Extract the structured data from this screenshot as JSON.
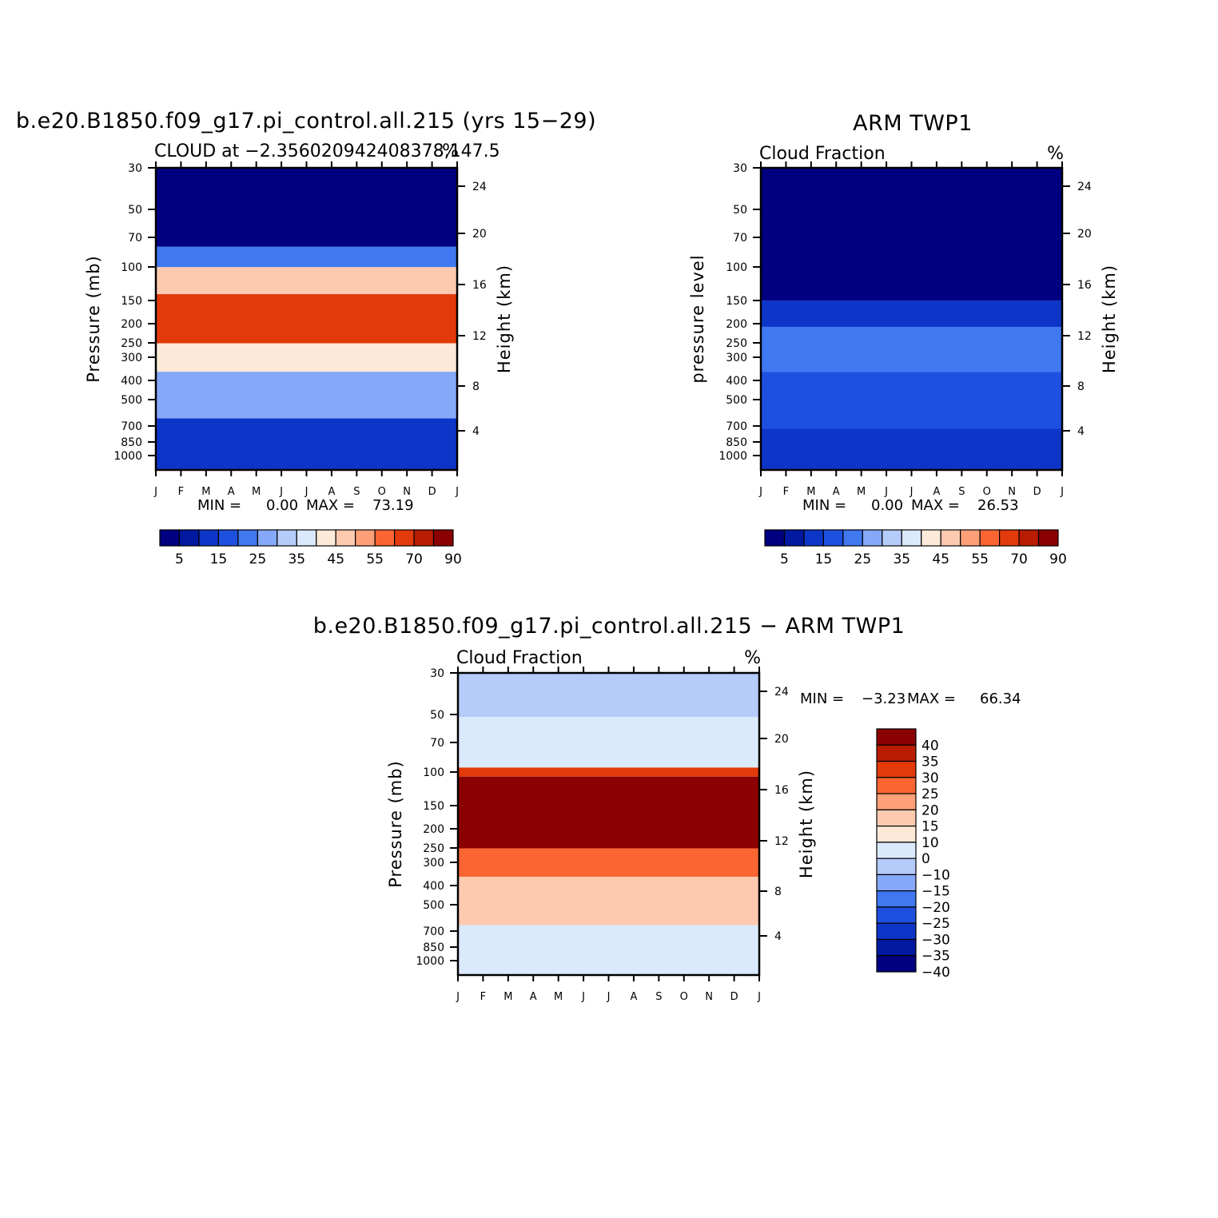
{
  "chart_data": [
    {
      "type": "heatmap",
      "title": "b.e20.B1850.f09_g17.pi_control.all.215 (yrs 15−29)",
      "subtitle_left": "CLOUD at −2.356020942408378,147.5",
      "subtitle_right": "%",
      "ylabel": "Pressure (mb)",
      "ylabel_right": "Height (km)",
      "x_ticks": [
        "J",
        "F",
        "M",
        "A",
        "M",
        "J",
        "J",
        "A",
        "S",
        "O",
        "N",
        "D",
        "J"
      ],
      "y_ticks": [
        "30",
        "50",
        "70",
        "100",
        "150",
        "200",
        "250",
        "300",
        "400",
        "500",
        "700",
        "850",
        "1000"
      ],
      "y_ticks_right": [
        "24",
        "20",
        "16",
        "12",
        "8",
        "4"
      ],
      "stats": {
        "min_label": "MIN =",
        "min": "0.00",
        "max_label": "MAX =",
        "max": "73.19"
      },
      "colorbar_labels": [
        "5",
        "15",
        "25",
        "35",
        "45",
        "55",
        "70",
        "90"
      ],
      "bands": [
        {
          "from_hpa": 30,
          "to_hpa": 75,
          "value": 2
        },
        {
          "from_hpa": 75,
          "to_hpa": 95,
          "value": 20
        },
        {
          "from_hpa": 95,
          "to_hpa": 130,
          "value": 45
        },
        {
          "from_hpa": 130,
          "to_hpa": 230,
          "value": 65
        },
        {
          "from_hpa": 230,
          "to_hpa": 320,
          "value": 40
        },
        {
          "from_hpa": 320,
          "to_hpa": 550,
          "value": 25
        },
        {
          "from_hpa": 550,
          "to_hpa": 1000,
          "value": 10
        }
      ]
    },
    {
      "type": "heatmap",
      "title": "ARM TWP1",
      "subtitle_left": "Cloud Fraction",
      "subtitle_right": "%",
      "ylabel": "pressure level",
      "ylabel_right": "Height (km)",
      "x_ticks": [
        "J",
        "F",
        "M",
        "A",
        "M",
        "J",
        "J",
        "A",
        "S",
        "O",
        "N",
        "D",
        "J"
      ],
      "y_ticks": [
        "30",
        "50",
        "70",
        "100",
        "150",
        "200",
        "250",
        "300",
        "400",
        "500",
        "700",
        "850",
        "1000"
      ],
      "y_ticks_right": [
        "24",
        "20",
        "16",
        "12",
        "8",
        "4"
      ],
      "stats": {
        "min_label": "MIN =",
        "min": "0.00",
        "max_label": "MAX =",
        "max": "26.53"
      },
      "colorbar_labels": [
        "5",
        "15",
        "25",
        "35",
        "45",
        "55",
        "70",
        "90"
      ],
      "bands": [
        {
          "from_hpa": 30,
          "to_hpa": 140,
          "value": 2
        },
        {
          "from_hpa": 140,
          "to_hpa": 190,
          "value": 10
        },
        {
          "from_hpa": 190,
          "to_hpa": 320,
          "value": 22
        },
        {
          "from_hpa": 320,
          "to_hpa": 620,
          "value": 17
        },
        {
          "from_hpa": 620,
          "to_hpa": 1000,
          "value": 12
        }
      ]
    },
    {
      "type": "heatmap",
      "title": "b.e20.B1850.f09_g17.pi_control.all.215 − ARM TWP1",
      "subtitle_left": "Cloud Fraction",
      "subtitle_right": "%",
      "ylabel": "Pressure (mb)",
      "ylabel_right": "Height (km)",
      "x_ticks": [
        "J",
        "F",
        "M",
        "A",
        "M",
        "J",
        "J",
        "A",
        "S",
        "O",
        "N",
        "D",
        "J"
      ],
      "y_ticks": [
        "30",
        "50",
        "70",
        "100",
        "150",
        "200",
        "250",
        "300",
        "400",
        "500",
        "700",
        "850",
        "1000"
      ],
      "y_ticks_right": [
        "24",
        "20",
        "16",
        "12",
        "8",
        "4"
      ],
      "stats": {
        "min_label": "MIN =",
        "min": "−3.23",
        "max_label": "MAX =",
        "max": "66.34"
      },
      "colorbar_labels": [
        "40",
        "35",
        "30",
        "25",
        "20",
        "15",
        "10",
        "0",
        "−10",
        "−15",
        "−20",
        "−25",
        "−30",
        "−35",
        "−40"
      ],
      "bands": [
        {
          "from_hpa": 30,
          "to_hpa": 50,
          "value": -2
        },
        {
          "from_hpa": 50,
          "to_hpa": 90,
          "value": 3
        },
        {
          "from_hpa": 90,
          "to_hpa": 100,
          "value": 30
        },
        {
          "from_hpa": 100,
          "to_hpa": 230,
          "value": 45
        },
        {
          "from_hpa": 230,
          "to_hpa": 320,
          "value": 25
        },
        {
          "from_hpa": 320,
          "to_hpa": 560,
          "value": 15
        },
        {
          "from_hpa": 560,
          "to_hpa": 1000,
          "value": 3
        }
      ]
    }
  ],
  "colors": {
    "abs_palette": [
      "#000080",
      "#0019a0",
      "#0d35c8",
      "#1e50e0",
      "#3f78f0",
      "#86a8f8",
      "#b5cbfa",
      "#dbe9fc",
      "#fde9d8",
      "#fdcab0",
      "#fda078",
      "#fa6532",
      "#e23a0a",
      "#b81c02",
      "#8b0000"
    ],
    "diff_palette": [
      "#8b0000",
      "#b81c02",
      "#e23a0a",
      "#fa6532",
      "#fda078",
      "#fdcab0",
      "#fde9d8",
      "#dbe9fc",
      "#b5cbfa",
      "#86a8f8",
      "#3f78f0",
      "#1e50e0",
      "#0d35c8",
      "#0019a0",
      "#000080"
    ]
  }
}
